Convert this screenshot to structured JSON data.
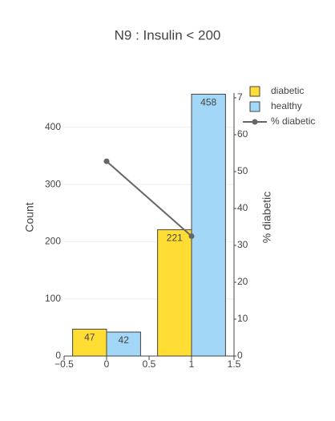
{
  "chart_data": {
    "type": "bar",
    "title": "N9 : Insulin < 200",
    "x": [
      0,
      1
    ],
    "series": [
      {
        "name": "diabetic",
        "color": "#ffdd33",
        "values": [
          47,
          221
        ]
      },
      {
        "name": "healthy",
        "color": "#a3d7f7",
        "values": [
          42,
          458
        ]
      },
      {
        "name": "% diabetic",
        "type": "line",
        "axis": "y2",
        "color": "#666666",
        "values": [
          52.8,
          32.5
        ]
      }
    ],
    "xlim": [
      -0.5,
      1.5
    ],
    "xticks": [
      {
        "value": -0.5,
        "label": "−0.5"
      },
      0,
      0.5,
      1,
      1.5
    ],
    "ylim": [
      0,
      460
    ],
    "yticks": [
      0,
      100,
      200,
      300,
      400
    ],
    "y2lim": [
      0,
      71.3
    ],
    "y2ticks": [
      0,
      10,
      20,
      30,
      40,
      50,
      60,
      70
    ],
    "ylabel": "Count",
    "y2label": "% diabetic",
    "grid": true,
    "legend": "top-right"
  }
}
